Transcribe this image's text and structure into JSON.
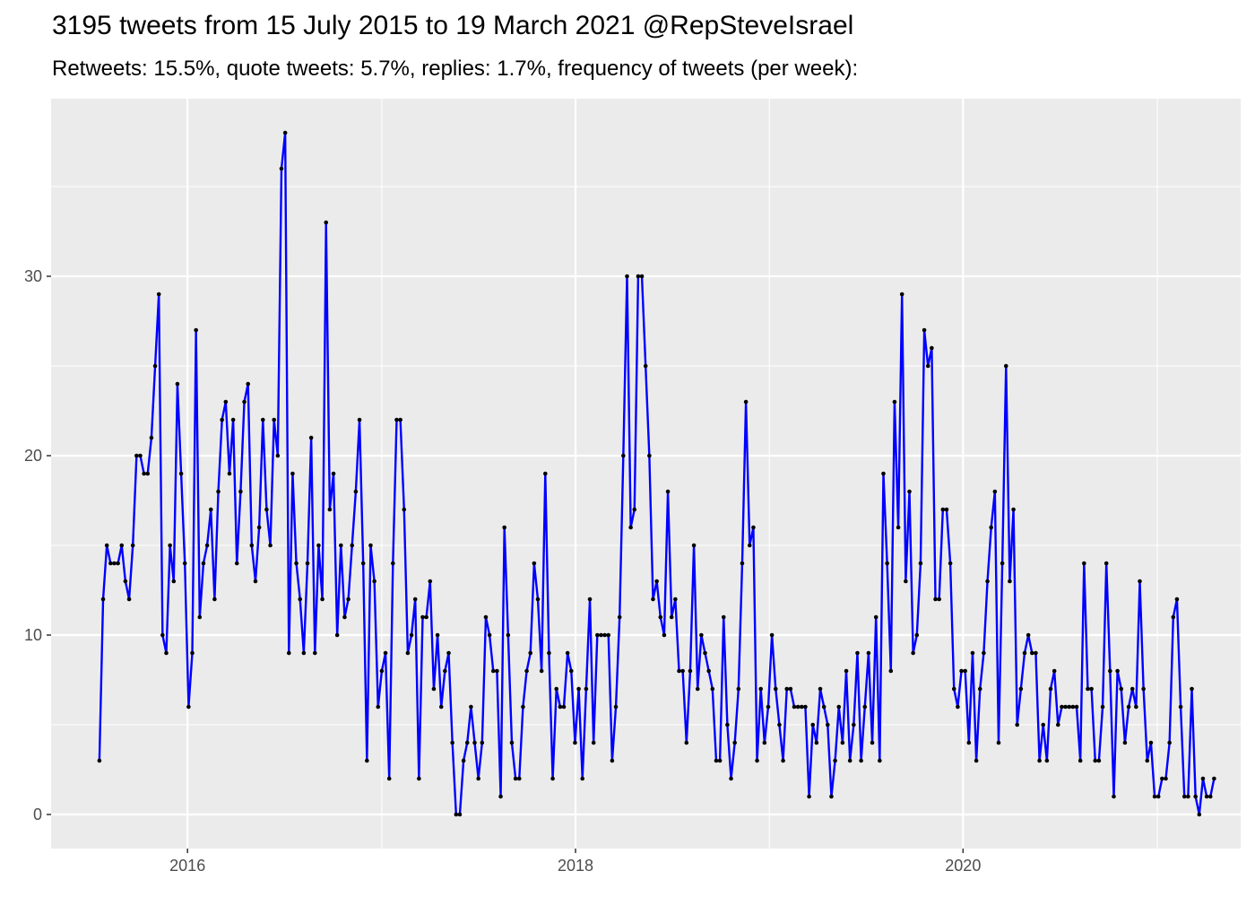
{
  "chart_data": {
    "type": "line",
    "title": "3195 tweets from 15 July 2015 to 19 March 2021 @RepSteveIsrael",
    "subtitle": "Retweets: 15.5%, quote tweets: 5.7%, replies: 1.7%, frequency of tweets (per week):",
    "xlabel": "",
    "ylabel": "",
    "x_axis": {
      "type": "date",
      "range": [
        "2015-04-19",
        "2021-06-07"
      ],
      "ticks": [
        {
          "date": "2016-01-01",
          "label": "2016"
        },
        {
          "date": "2018-01-01",
          "label": "2018"
        },
        {
          "date": "2020-01-01",
          "label": "2020"
        }
      ],
      "minor_ticks": [
        "2017-01-01",
        "2019-01-01",
        "2021-01-01"
      ]
    },
    "y_axis": {
      "range": [
        -1.9,
        39.9
      ],
      "ticks": [
        0,
        10,
        20,
        30
      ],
      "minor_ticks": [
        5,
        15,
        25,
        35
      ]
    },
    "grid": true,
    "background": "#ebebeb",
    "line_color": "#0000ff",
    "point_color": "#000000",
    "series": [
      {
        "start_date": "2015-07-19",
        "interval_days": 7,
        "values": [
          3,
          12,
          15,
          14,
          14,
          14,
          15,
          13,
          12,
          15,
          20,
          20,
          19,
          19,
          21,
          25,
          29,
          10,
          9,
          15,
          13,
          24,
          19,
          14,
          6,
          9,
          27,
          11,
          14,
          15,
          17,
          12,
          18,
          22,
          23,
          19,
          22,
          14,
          18,
          23,
          24,
          15,
          13,
          16,
          22,
          17,
          15,
          22,
          20,
          36,
          38,
          9,
          19,
          14,
          12,
          9,
          14,
          21,
          9,
          15,
          12,
          33,
          17,
          19,
          10,
          15,
          11,
          12,
          15,
          18,
          22,
          14,
          3,
          15,
          13,
          6,
          8,
          9,
          2,
          14,
          22,
          22,
          17,
          9,
          10,
          12,
          2,
          11,
          11,
          13,
          7,
          10,
          6,
          8,
          9,
          4,
          0,
          0,
          3,
          4,
          6,
          4,
          2,
          4,
          11,
          10,
          8,
          8,
          1,
          16,
          10,
          4,
          2,
          2,
          6,
          8,
          9,
          14,
          12,
          8,
          19,
          9,
          2,
          7,
          6,
          6,
          9,
          8,
          4,
          7,
          2,
          7,
          12,
          4,
          10,
          10,
          10,
          10,
          3,
          6,
          11,
          20,
          30,
          16,
          17,
          30,
          30,
          25,
          20,
          12,
          13,
          11,
          10,
          18,
          11,
          12,
          8,
          8,
          4,
          8,
          15,
          7,
          10,
          9,
          8,
          7,
          3,
          3,
          11,
          5,
          2,
          4,
          7,
          14,
          23,
          15,
          16,
          3,
          7,
          4,
          6,
          10,
          7,
          5,
          3,
          7,
          7,
          6,
          6,
          6,
          6,
          1,
          5,
          4,
          7,
          6,
          5,
          1,
          3,
          6,
          4,
          8,
          3,
          5,
          9,
          3,
          6,
          9,
          4,
          11,
          3,
          19,
          14,
          8,
          23,
          16,
          29,
          13,
          18,
          9,
          10,
          14,
          27,
          25,
          26,
          12,
          12,
          17,
          17,
          14,
          7,
          6,
          8,
          8,
          4,
          9,
          3,
          7,
          9,
          13,
          16,
          18,
          4,
          14,
          25,
          13,
          17,
          5,
          7,
          9,
          10,
          9,
          9,
          3,
          5,
          3,
          7,
          8,
          5,
          6,
          6,
          6,
          6,
          6,
          3,
          14,
          7,
          7,
          3,
          3,
          6,
          14,
          8,
          1,
          8,
          7,
          4,
          6,
          7,
          6,
          13,
          7,
          3,
          4,
          1,
          1,
          2,
          2,
          4,
          11,
          12,
          6,
          1,
          1,
          7,
          1,
          0,
          2,
          1,
          1,
          2
        ]
      }
    ]
  }
}
